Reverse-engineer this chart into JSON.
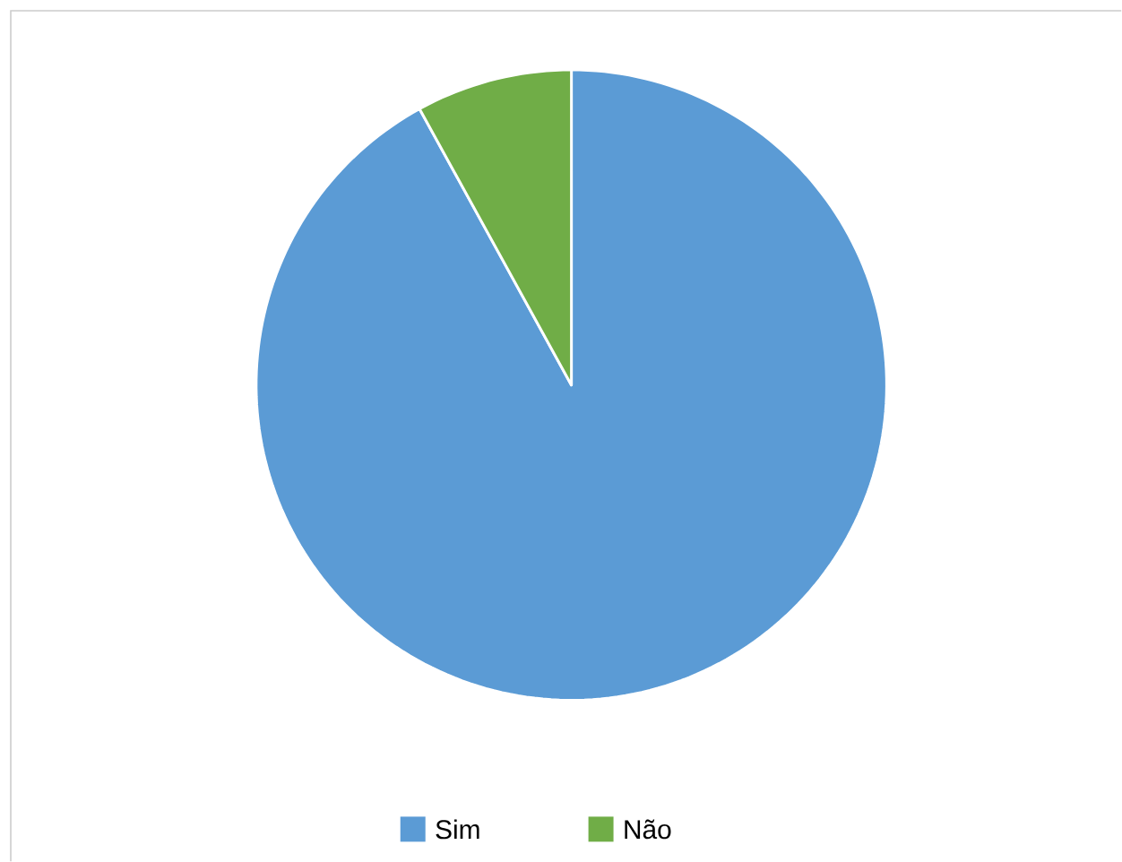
{
  "chart_data": {
    "type": "pie",
    "categories": [
      "Sim",
      "Não"
    ],
    "values": [
      92,
      8
    ],
    "colors": [
      "#5b9bd5",
      "#70ad47"
    ],
    "legend": "bottom"
  }
}
